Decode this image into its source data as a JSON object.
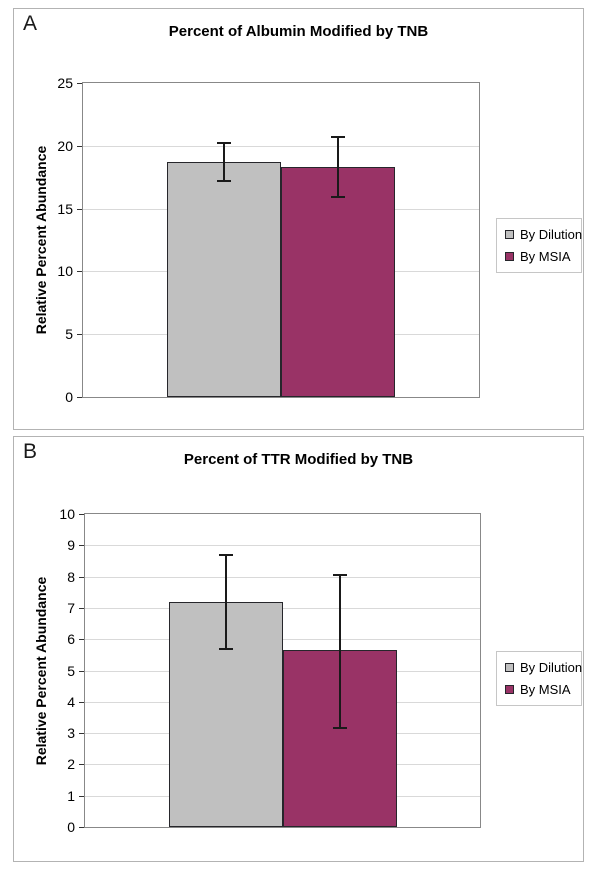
{
  "colors": {
    "series_dilution": "#c0c0c0",
    "series_msia": "#993366",
    "bar_border": "#26262b",
    "error_bar": "#1a1a1a",
    "gridline": "#d9d9d9",
    "plot_border": "#888888",
    "panel_border": "#b3b3b3"
  },
  "chart_data": [
    {
      "type": "bar",
      "panel_label": "A",
      "title": "Percent of Albumin Modified by TNB",
      "xlabel": "",
      "ylabel": "Relative Percent Abundance",
      "ylim": [
        0,
        25
      ],
      "ytick_step": 5,
      "grid": "horizontal",
      "legend_position": "right",
      "series": [
        {
          "name": "By Dilution",
          "value": 18.7,
          "error_low": 17.2,
          "error_high": 20.2,
          "color": "#c0c0c0"
        },
        {
          "name": "By MSIA",
          "value": 18.3,
          "error_low": 15.9,
          "error_high": 20.7,
          "color": "#993366"
        }
      ]
    },
    {
      "type": "bar",
      "panel_label": "B",
      "title": "Percent of TTR Modified by TNB",
      "xlabel": "",
      "ylabel": "Relative Percent Abundance",
      "ylim": [
        0,
        10
      ],
      "ytick_step": 1,
      "grid": "horizontal",
      "legend_position": "right",
      "series": [
        {
          "name": "By Dilution",
          "value": 7.2,
          "error_low": 5.7,
          "error_high": 8.7,
          "color": "#c0c0c0"
        },
        {
          "name": "By MSIA",
          "value": 5.65,
          "error_low": 3.15,
          "error_high": 8.05,
          "color": "#993366"
        }
      ]
    }
  ]
}
